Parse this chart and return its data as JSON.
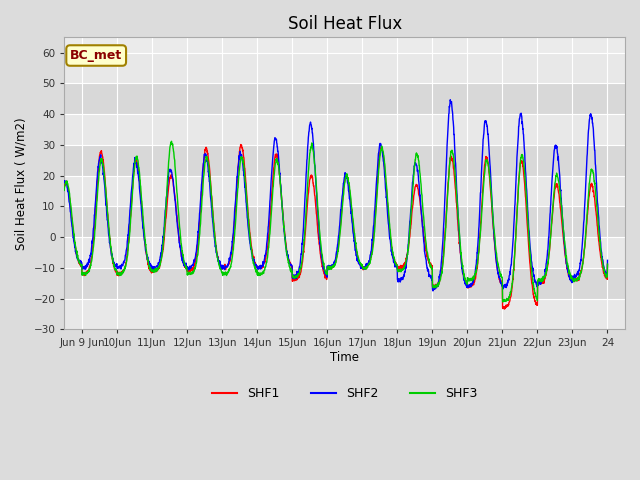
{
  "title": "Soil Heat Flux",
  "ylabel": "Soil Heat Flux ( W/m2)",
  "xlabel": "Time",
  "ylim": [
    -30,
    65
  ],
  "yticks": [
    -30,
    -20,
    -10,
    0,
    10,
    20,
    30,
    40,
    50,
    60
  ],
  "bg_color": "#dcdcdc",
  "plot_bg_color": "#ebebeb",
  "shaded_bg_top": "#d8d8d8",
  "shaded_bg_bottom": "#f0f0f0",
  "line_colors": {
    "SHF1": "#ff0000",
    "SHF2": "#0000ff",
    "SHF3": "#00cc00"
  },
  "legend_label": "BC_met",
  "annotation_box_color": "#ffffcc",
  "annotation_box_edge": "#a08000",
  "x_labels": [
    "Jun 9 Jun",
    "10Jun",
    "11Jun",
    "12Jun",
    "13Jun",
    "14Jun",
    "15Jun",
    "16Jun",
    "17Jun",
    "18Jun",
    "19Jun",
    "20Jun",
    "21Jun",
    "22Jun",
    "23Jun",
    "24"
  ],
  "legend_entries": [
    "SHF1",
    "SHF2",
    "SHF3"
  ]
}
